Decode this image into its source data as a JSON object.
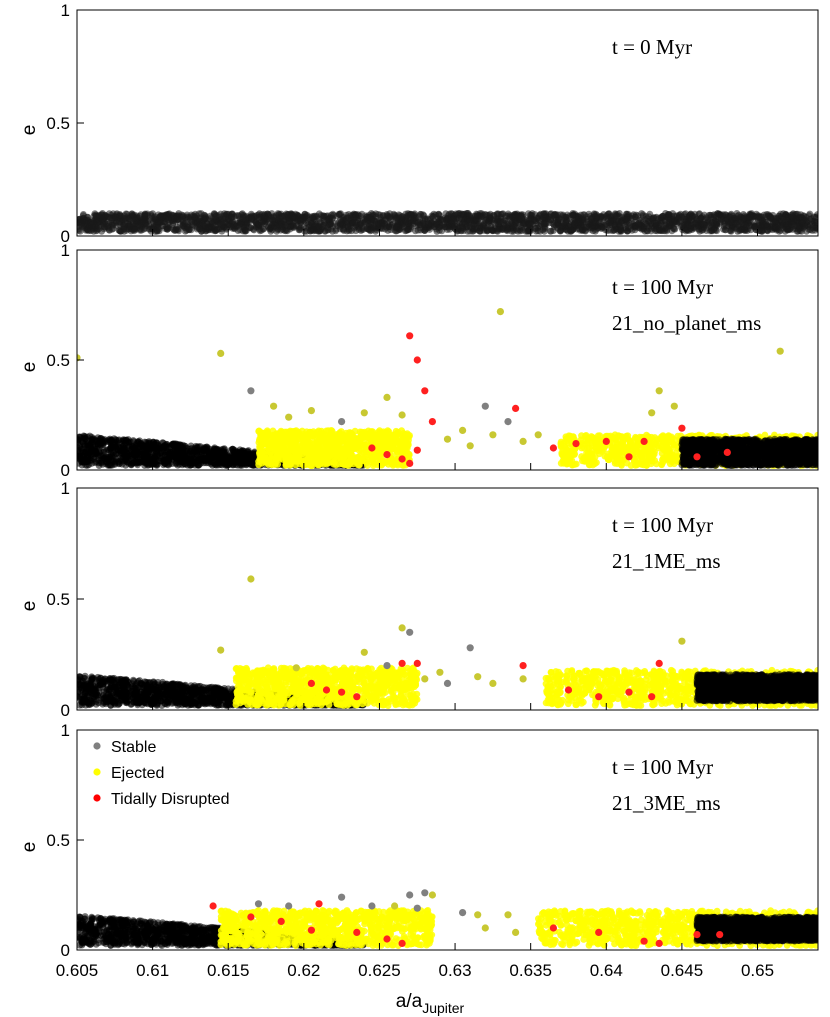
{
  "chart_data": {
    "type": "scatter",
    "xlabel": "a/a",
    "xlabel_subscript": "Jupiter",
    "xlim": [
      0.605,
      0.654
    ],
    "xticks": [
      "0.605",
      "0.61",
      "0.615",
      "0.62",
      "0.625",
      "0.63",
      "0.635",
      "0.64",
      "0.645",
      "0.65"
    ],
    "ylabel": "e",
    "ylim": [
      0,
      1
    ],
    "yticks": [
      "0",
      "0.5",
      "1"
    ],
    "grid": false,
    "legend_placement": "top-left of bottom panel",
    "legend": [
      {
        "name": "Stable",
        "color": "#808080"
      },
      {
        "name": "Ejected",
        "color": "#ffff00"
      },
      {
        "name": "Tidally Disrupted",
        "color": "#ff0000"
      }
    ],
    "panels": [
      {
        "annotation": [
          "t = 0 Myr"
        ],
        "band": {
          "status": "Stable",
          "x_range": [
            0.605,
            0.654
          ],
          "e_range": [
            0.02,
            0.1
          ]
        },
        "points": []
      },
      {
        "annotation": [
          "t = 100 Myr",
          "21_no_planet_ms"
        ],
        "bands": [
          {
            "status": "Stable",
            "x_range": [
              0.605,
              0.624
            ],
            "e_range": [
              0.02,
              0.16
            ]
          },
          {
            "status": "Ejected",
            "x_range": [
              0.617,
              0.627
            ],
            "e_range": [
              0.02,
              0.18
            ]
          },
          {
            "status": "Ejected",
            "x_range": [
              0.637,
              0.654
            ],
            "e_range": [
              0.02,
              0.16
            ]
          },
          {
            "status": "Stable",
            "x_range": [
              0.645,
              0.654
            ],
            "e_range": [
              0.02,
              0.14
            ]
          }
        ],
        "points": [
          {
            "x": 0.605,
            "e": 0.51,
            "status": "Ejected"
          },
          {
            "x": 0.6145,
            "e": 0.53,
            "status": "Ejected"
          },
          {
            "x": 0.6165,
            "e": 0.36,
            "status": "Stable"
          },
          {
            "x": 0.618,
            "e": 0.29,
            "status": "Ejected"
          },
          {
            "x": 0.619,
            "e": 0.24,
            "status": "Ejected"
          },
          {
            "x": 0.6205,
            "e": 0.27,
            "status": "Ejected"
          },
          {
            "x": 0.6225,
            "e": 0.22,
            "status": "Stable"
          },
          {
            "x": 0.624,
            "e": 0.26,
            "status": "Ejected"
          },
          {
            "x": 0.6255,
            "e": 0.33,
            "status": "Ejected"
          },
          {
            "x": 0.6265,
            "e": 0.25,
            "status": "Ejected"
          },
          {
            "x": 0.627,
            "e": 0.61,
            "status": "Tidally Disrupted"
          },
          {
            "x": 0.6275,
            "e": 0.5,
            "status": "Tidally Disrupted"
          },
          {
            "x": 0.628,
            "e": 0.36,
            "status": "Tidally Disrupted"
          },
          {
            "x": 0.6285,
            "e": 0.22,
            "status": "Tidally Disrupted"
          },
          {
            "x": 0.6245,
            "e": 0.1,
            "status": "Tidally Disrupted"
          },
          {
            "x": 0.6255,
            "e": 0.07,
            "status": "Tidally Disrupted"
          },
          {
            "x": 0.6265,
            "e": 0.05,
            "status": "Tidally Disrupted"
          },
          {
            "x": 0.627,
            "e": 0.03,
            "status": "Tidally Disrupted"
          },
          {
            "x": 0.6275,
            "e": 0.09,
            "status": "Tidally Disrupted"
          },
          {
            "x": 0.6295,
            "e": 0.14,
            "status": "Ejected"
          },
          {
            "x": 0.6305,
            "e": 0.18,
            "status": "Ejected"
          },
          {
            "x": 0.631,
            "e": 0.11,
            "status": "Ejected"
          },
          {
            "x": 0.632,
            "e": 0.29,
            "status": "Stable"
          },
          {
            "x": 0.6325,
            "e": 0.16,
            "status": "Ejected"
          },
          {
            "x": 0.633,
            "e": 0.72,
            "status": "Ejected"
          },
          {
            "x": 0.6335,
            "e": 0.22,
            "status": "Stable"
          },
          {
            "x": 0.634,
            "e": 0.28,
            "status": "Tidally Disrupted"
          },
          {
            "x": 0.6345,
            "e": 0.13,
            "status": "Ejected"
          },
          {
            "x": 0.6355,
            "e": 0.16,
            "status": "Ejected"
          },
          {
            "x": 0.6365,
            "e": 0.1,
            "status": "Tidally Disrupted"
          },
          {
            "x": 0.638,
            "e": 0.12,
            "status": "Tidally Disrupted"
          },
          {
            "x": 0.64,
            "e": 0.13,
            "status": "Tidally Disrupted"
          },
          {
            "x": 0.6415,
            "e": 0.06,
            "status": "Tidally Disrupted"
          },
          {
            "x": 0.6425,
            "e": 0.13,
            "status": "Tidally Disrupted"
          },
          {
            "x": 0.6435,
            "e": 0.36,
            "status": "Ejected"
          },
          {
            "x": 0.643,
            "e": 0.26,
            "status": "Ejected"
          },
          {
            "x": 0.6445,
            "e": 0.29,
            "status": "Ejected"
          },
          {
            "x": 0.645,
            "e": 0.19,
            "status": "Tidally Disrupted"
          },
          {
            "x": 0.646,
            "e": 0.06,
            "status": "Tidally Disrupted"
          },
          {
            "x": 0.648,
            "e": 0.08,
            "status": "Tidally Disrupted"
          },
          {
            "x": 0.6515,
            "e": 0.54,
            "status": "Ejected"
          }
        ]
      },
      {
        "annotation": [
          "t = 100 Myr",
          "21_1ME_ms"
        ],
        "bands": [
          {
            "status": "Stable",
            "x_range": [
              0.605,
              0.624
            ],
            "e_range": [
              0.02,
              0.16
            ]
          },
          {
            "status": "Ejected",
            "x_range": [
              0.6155,
              0.6275
            ],
            "e_range": [
              0.02,
              0.19
            ]
          },
          {
            "status": "Ejected",
            "x_range": [
              0.636,
              0.654
            ],
            "e_range": [
              0.02,
              0.18
            ]
          },
          {
            "status": "Stable",
            "x_range": [
              0.646,
              0.654
            ],
            "e_range": [
              0.04,
              0.16
            ]
          }
        ],
        "points": [
          {
            "x": 0.6145,
            "e": 0.27,
            "status": "Ejected"
          },
          {
            "x": 0.6165,
            "e": 0.59,
            "status": "Ejected"
          },
          {
            "x": 0.6195,
            "e": 0.19,
            "status": "Ejected"
          },
          {
            "x": 0.624,
            "e": 0.26,
            "status": "Ejected"
          },
          {
            "x": 0.6255,
            "e": 0.2,
            "status": "Stable"
          },
          {
            "x": 0.6265,
            "e": 0.37,
            "status": "Ejected"
          },
          {
            "x": 0.627,
            "e": 0.35,
            "status": "Stable"
          },
          {
            "x": 0.6265,
            "e": 0.21,
            "status": "Tidally Disrupted"
          },
          {
            "x": 0.6275,
            "e": 0.21,
            "status": "Tidally Disrupted"
          },
          {
            "x": 0.628,
            "e": 0.14,
            "status": "Ejected"
          },
          {
            "x": 0.629,
            "e": 0.17,
            "status": "Ejected"
          },
          {
            "x": 0.6295,
            "e": 0.12,
            "status": "Stable"
          },
          {
            "x": 0.631,
            "e": 0.28,
            "status": "Stable"
          },
          {
            "x": 0.6315,
            "e": 0.15,
            "status": "Ejected"
          },
          {
            "x": 0.6325,
            "e": 0.12,
            "status": "Ejected"
          },
          {
            "x": 0.6345,
            "e": 0.2,
            "status": "Tidally Disrupted"
          },
          {
            "x": 0.6345,
            "e": 0.14,
            "status": "Ejected"
          },
          {
            "x": 0.6435,
            "e": 0.21,
            "status": "Tidally Disrupted"
          },
          {
            "x": 0.645,
            "e": 0.31,
            "status": "Ejected"
          },
          {
            "x": 0.6205,
            "e": 0.12,
            "status": "Tidally Disrupted"
          },
          {
            "x": 0.6215,
            "e": 0.09,
            "status": "Tidally Disrupted"
          },
          {
            "x": 0.6225,
            "e": 0.08,
            "status": "Tidally Disrupted"
          },
          {
            "x": 0.6235,
            "e": 0.06,
            "status": "Tidally Disrupted"
          },
          {
            "x": 0.6375,
            "e": 0.09,
            "status": "Tidally Disrupted"
          },
          {
            "x": 0.6395,
            "e": 0.06,
            "status": "Tidally Disrupted"
          },
          {
            "x": 0.6415,
            "e": 0.08,
            "status": "Tidally Disrupted"
          },
          {
            "x": 0.643,
            "e": 0.06,
            "status": "Tidally Disrupted"
          }
        ]
      },
      {
        "annotation": [
          "t = 100 Myr",
          "21_3ME_ms"
        ],
        "bands": [
          {
            "status": "Stable",
            "x_range": [
              0.605,
              0.624
            ],
            "e_range": [
              0.02,
              0.16
            ]
          },
          {
            "status": "Ejected",
            "x_range": [
              0.6145,
              0.6285
            ],
            "e_range": [
              0.02,
              0.18
            ]
          },
          {
            "status": "Ejected",
            "x_range": [
              0.6355,
              0.654
            ],
            "e_range": [
              0.02,
              0.18
            ]
          },
          {
            "status": "Stable",
            "x_range": [
              0.646,
              0.654
            ],
            "e_range": [
              0.04,
              0.15
            ]
          }
        ],
        "points": [
          {
            "x": 0.617,
            "e": 0.21,
            "status": "Stable"
          },
          {
            "x": 0.619,
            "e": 0.2,
            "status": "Stable"
          },
          {
            "x": 0.6225,
            "e": 0.24,
            "status": "Stable"
          },
          {
            "x": 0.6245,
            "e": 0.2,
            "status": "Stable"
          },
          {
            "x": 0.626,
            "e": 0.2,
            "status": "Ejected"
          },
          {
            "x": 0.627,
            "e": 0.25,
            "status": "Stable"
          },
          {
            "x": 0.628,
            "e": 0.26,
            "status": "Stable"
          },
          {
            "x": 0.6285,
            "e": 0.25,
            "status": "Ejected"
          },
          {
            "x": 0.6275,
            "e": 0.19,
            "status": "Stable"
          },
          {
            "x": 0.6305,
            "e": 0.17,
            "status": "Stable"
          },
          {
            "x": 0.6315,
            "e": 0.16,
            "status": "Ejected"
          },
          {
            "x": 0.632,
            "e": 0.1,
            "status": "Ejected"
          },
          {
            "x": 0.6335,
            "e": 0.16,
            "status": "Ejected"
          },
          {
            "x": 0.634,
            "e": 0.08,
            "status": "Ejected"
          },
          {
            "x": 0.614,
            "e": 0.2,
            "status": "Tidally Disrupted"
          },
          {
            "x": 0.6165,
            "e": 0.15,
            "status": "Tidally Disrupted"
          },
          {
            "x": 0.6185,
            "e": 0.13,
            "status": "Tidally Disrupted"
          },
          {
            "x": 0.6205,
            "e": 0.09,
            "status": "Tidally Disrupted"
          },
          {
            "x": 0.621,
            "e": 0.21,
            "status": "Tidally Disrupted"
          },
          {
            "x": 0.6235,
            "e": 0.08,
            "status": "Tidally Disrupted"
          },
          {
            "x": 0.6255,
            "e": 0.05,
            "status": "Tidally Disrupted"
          },
          {
            "x": 0.6265,
            "e": 0.03,
            "status": "Tidally Disrupted"
          },
          {
            "x": 0.6365,
            "e": 0.1,
            "status": "Tidally Disrupted"
          },
          {
            "x": 0.6395,
            "e": 0.08,
            "status": "Tidally Disrupted"
          },
          {
            "x": 0.6425,
            "e": 0.04,
            "status": "Tidally Disrupted"
          },
          {
            "x": 0.6435,
            "e": 0.03,
            "status": "Tidally Disrupted"
          },
          {
            "x": 0.646,
            "e": 0.07,
            "status": "Tidally Disrupted"
          },
          {
            "x": 0.6475,
            "e": 0.07,
            "status": "Tidally Disrupted"
          }
        ]
      }
    ]
  },
  "colors": {
    "Stable": "#808080",
    "Ejected": "#ffff00",
    "Tidally Disrupted": "#ff2020",
    "initial_stable_fill": "#1a1a1a",
    "stable_band_fill": "#000000",
    "ejected_point_stroke": "#c8c832"
  }
}
